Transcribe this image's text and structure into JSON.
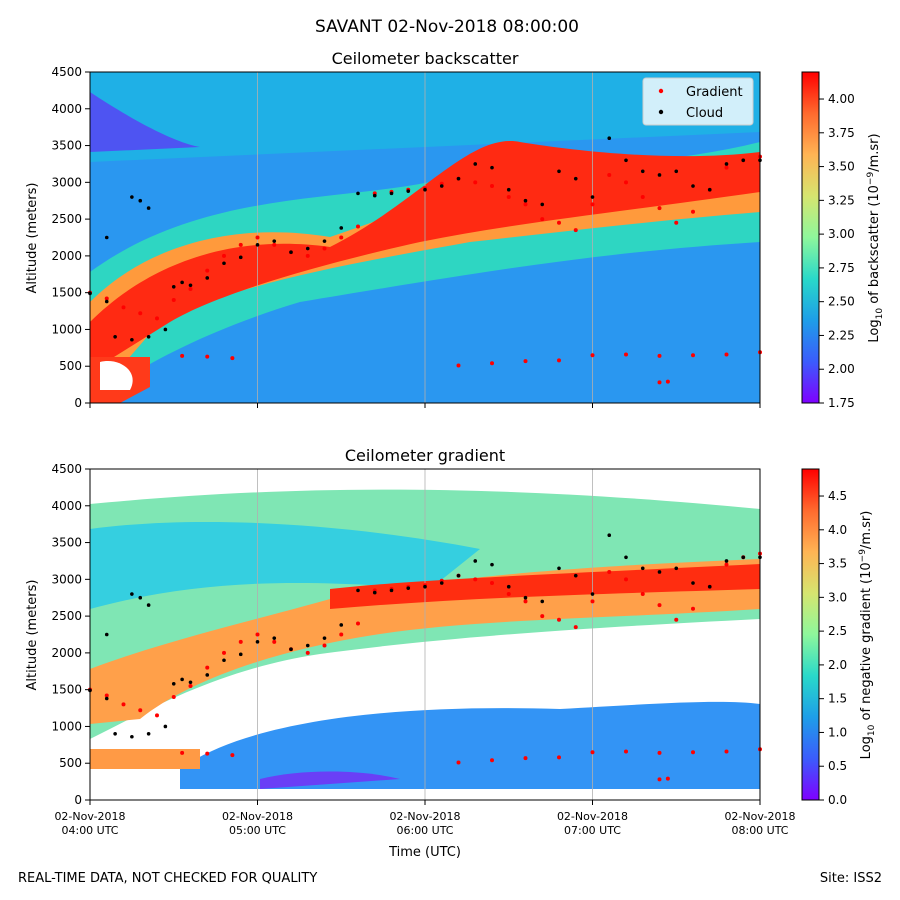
{
  "figure": {
    "title": "SAVANT 02-Nov-2018 08:00:00",
    "footer_left": "REAL-TIME DATA, NOT CHECKED FOR QUALITY",
    "footer_right": "Site: ISS2"
  },
  "colormap": [
    "#7f00ff",
    "#3b5cfc",
    "#1e9ee8",
    "#29d9c9",
    "#8ef79c",
    "#d6e56f",
    "#ffb454",
    "#ff6a2e",
    "#ff0000"
  ],
  "colors": {
    "gradient_marker": "#ff0000",
    "cloud_marker": "#000000",
    "grid": "#b0b0b0"
  },
  "chart_data": [
    {
      "type": "heatmap",
      "title": "Ceilometer backscatter",
      "ylabel": "Altitude (meters)",
      "xlabel": "",
      "x_tick_labels_shown": false,
      "ylim": [
        0,
        4500
      ],
      "y_ticks": [
        "0",
        "500",
        "1000",
        "1500",
        "2000",
        "2500",
        "3000",
        "3500",
        "4000",
        "4500"
      ],
      "x_ticks": [
        {
          "line1": "02-Nov-2018",
          "line2": "04:00 UTC"
        },
        {
          "line1": "02-Nov-2018",
          "line2": "05:00 UTC"
        },
        {
          "line1": "02-Nov-2018",
          "line2": "06:00 UTC"
        },
        {
          "line1": "02-Nov-2018",
          "line2": "07:00 UTC"
        },
        {
          "line1": "02-Nov-2018",
          "line2": "08:00 UTC"
        }
      ],
      "legend": {
        "position": "top-right",
        "entries": [
          {
            "label": "Gradient",
            "color": "#ff0000"
          },
          {
            "label": "Cloud",
            "color": "#000000"
          }
        ]
      },
      "colorbar": {
        "label_prefix": "Log",
        "label_sub": "10",
        "label_mid": " of backscatter (10",
        "label_sup": "−9",
        "label_suffix": "/m.sr)",
        "vmin": 1.75,
        "vmax": 4.2,
        "ticks": [
          "1.75",
          "2.00",
          "2.25",
          "2.50",
          "2.75",
          "3.00",
          "3.25",
          "3.50",
          "3.75",
          "4.00"
        ]
      },
      "gradient_series": [
        [
          4.0,
          1500
        ],
        [
          4.1,
          1420
        ],
        [
          4.2,
          1300
        ],
        [
          4.3,
          1220
        ],
        [
          4.4,
          1150
        ],
        [
          4.5,
          1400
        ],
        [
          4.6,
          1550
        ],
        [
          4.7,
          1800
        ],
        [
          4.8,
          2000
        ],
        [
          4.9,
          2150
        ],
        [
          5.0,
          2250
        ],
        [
          5.1,
          2150
        ],
        [
          5.2,
          2050
        ],
        [
          5.3,
          2000
        ],
        [
          5.4,
          2100
        ],
        [
          5.5,
          2250
        ],
        [
          5.6,
          2400
        ],
        [
          5.7,
          2850
        ],
        [
          5.8,
          2870
        ],
        [
          5.9,
          2900
        ],
        [
          6.0,
          2920
        ],
        [
          6.1,
          2980
        ],
        [
          6.2,
          3050
        ],
        [
          6.3,
          3000
        ],
        [
          6.4,
          2950
        ],
        [
          6.5,
          2800
        ],
        [
          6.6,
          2700
        ],
        [
          6.7,
          2500
        ],
        [
          6.8,
          2450
        ],
        [
          6.9,
          2350
        ],
        [
          7.0,
          2700
        ],
        [
          7.1,
          3100
        ],
        [
          7.2,
          3000
        ],
        [
          7.3,
          2800
        ],
        [
          7.4,
          2650
        ],
        [
          7.5,
          2450
        ],
        [
          7.6,
          2600
        ],
        [
          7.7,
          2900
        ],
        [
          7.8,
          3200
        ],
        [
          7.9,
          3300
        ],
        [
          8.0,
          3350
        ],
        [
          4.55,
          640
        ],
        [
          4.7,
          630
        ],
        [
          4.85,
          610
        ],
        [
          6.2,
          510
        ],
        [
          6.4,
          540
        ],
        [
          6.6,
          570
        ],
        [
          6.8,
          580
        ],
        [
          7.0,
          650
        ],
        [
          7.2,
          660
        ],
        [
          7.4,
          640
        ],
        [
          7.6,
          650
        ],
        [
          7.8,
          660
        ],
        [
          8.0,
          690
        ],
        [
          7.4,
          280
        ],
        [
          7.45,
          290
        ]
      ],
      "cloud_series": [
        [
          4.0,
          1490
        ],
        [
          4.1,
          1380
        ],
        [
          4.15,
          900
        ],
        [
          4.25,
          860
        ],
        [
          4.35,
          900
        ],
        [
          4.45,
          1000
        ],
        [
          4.5,
          1580
        ],
        [
          4.55,
          1640
        ],
        [
          4.6,
          1600
        ],
        [
          4.7,
          1700
        ],
        [
          4.8,
          1900
        ],
        [
          4.9,
          1980
        ],
        [
          5.0,
          2150
        ],
        [
          5.1,
          2200
        ],
        [
          5.2,
          2050
        ],
        [
          5.3,
          2100
        ],
        [
          5.4,
          2200
        ],
        [
          5.5,
          2380
        ],
        [
          5.6,
          2850
        ],
        [
          5.7,
          2820
        ],
        [
          5.8,
          2850
        ],
        [
          5.9,
          2880
        ],
        [
          6.0,
          2900
        ],
        [
          6.1,
          2950
        ],
        [
          6.2,
          3050
        ],
        [
          6.3,
          3250
        ],
        [
          6.4,
          3200
        ],
        [
          6.5,
          2900
        ],
        [
          6.6,
          2750
        ],
        [
          6.7,
          2700
        ],
        [
          6.8,
          3150
        ],
        [
          6.9,
          3050
        ],
        [
          7.0,
          2800
        ],
        [
          7.1,
          3600
        ],
        [
          7.2,
          3300
        ],
        [
          7.3,
          3150
        ],
        [
          7.4,
          3100
        ],
        [
          7.5,
          3150
        ],
        [
          7.6,
          2950
        ],
        [
          7.7,
          2900
        ],
        [
          7.8,
          3250
        ],
        [
          7.9,
          3300
        ],
        [
          8.0,
          3300
        ],
        [
          4.25,
          2800
        ],
        [
          4.3,
          2750
        ],
        [
          4.35,
          2650
        ],
        [
          4.1,
          2250
        ]
      ]
    },
    {
      "type": "heatmap",
      "title": "Ceilometer gradient",
      "ylabel": "Altitude (meters)",
      "xlabel": "Time (UTC)",
      "x_tick_labels_shown": true,
      "ylim": [
        0,
        4500
      ],
      "y_ticks": [
        "0",
        "500",
        "1000",
        "1500",
        "2000",
        "2500",
        "3000",
        "3500",
        "4000",
        "4500"
      ],
      "x_ticks": [
        {
          "line1": "02-Nov-2018",
          "line2": "04:00 UTC"
        },
        {
          "line1": "02-Nov-2018",
          "line2": "05:00 UTC"
        },
        {
          "line1": "02-Nov-2018",
          "line2": "06:00 UTC"
        },
        {
          "line1": "02-Nov-2018",
          "line2": "07:00 UTC"
        },
        {
          "line1": "02-Nov-2018",
          "line2": "08:00 UTC"
        }
      ],
      "colorbar": {
        "label_prefix": "Log",
        "label_sub": "10",
        "label_mid": " of negative gradient (10",
        "label_sup": "−9",
        "label_suffix": "/m.sr)",
        "vmin": 0.0,
        "vmax": 4.9,
        "ticks": [
          "0.0",
          "0.5",
          "1.0",
          "1.5",
          "2.0",
          "2.5",
          "3.0",
          "3.5",
          "4.0",
          "4.5"
        ]
      }
    }
  ]
}
